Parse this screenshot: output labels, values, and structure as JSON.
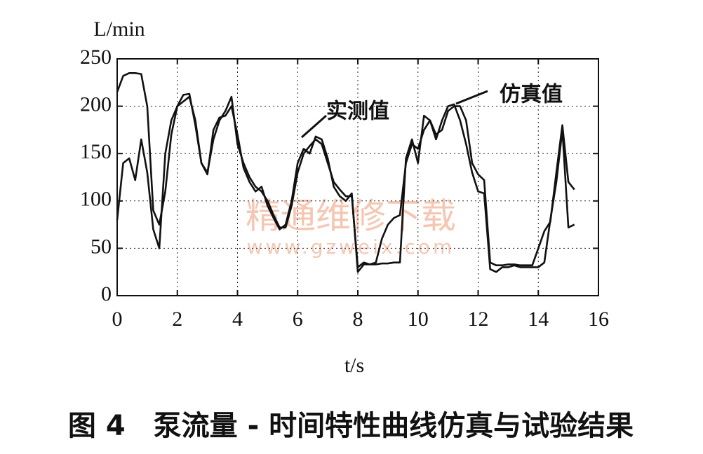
{
  "chart_data": {
    "type": "line",
    "x_label": "t/s",
    "y_label": "L/min",
    "caption": "图 4　泵流量 - 时间特性曲线仿真与试验结果",
    "watermark": [
      "精通维修下载",
      "www.gzweix.com"
    ],
    "xlim": [
      0,
      16
    ],
    "xticks": [
      0,
      2,
      4,
      6,
      8,
      10,
      12,
      14,
      16
    ],
    "ylim": [
      0,
      250
    ],
    "yticks": [
      0,
      50,
      100,
      150,
      200,
      250
    ],
    "grid": true,
    "x": [
      0,
      0.2,
      0.4,
      0.6,
      0.8,
      1.0,
      1.2,
      1.4,
      1.6,
      1.8,
      2.0,
      2.2,
      2.4,
      2.6,
      2.8,
      3.0,
      3.2,
      3.4,
      3.6,
      3.8,
      4.0,
      4.2,
      4.4,
      4.6,
      4.8,
      5.0,
      5.2,
      5.4,
      5.6,
      5.8,
      6.0,
      6.2,
      6.4,
      6.6,
      6.8,
      7.0,
      7.2,
      7.4,
      7.6,
      7.8,
      8.0,
      8.2,
      8.4,
      8.6,
      8.8,
      9.0,
      9.2,
      9.4,
      9.6,
      9.8,
      10.0,
      10.2,
      10.4,
      10.6,
      10.8,
      11.0,
      11.2,
      11.4,
      11.6,
      11.8,
      12.0,
      12.2,
      12.4,
      12.6,
      12.8,
      13.0,
      13.2,
      13.4,
      13.6,
      13.8,
      14.0,
      14.2,
      14.4,
      14.6,
      14.8,
      15.0,
      15.2
    ],
    "series": [
      {
        "name": "实测值",
        "color": "#111111",
        "values": [
          215,
          232,
          235,
          235,
          234,
          200,
          90,
          75,
          110,
          170,
          200,
          212,
          213,
          180,
          140,
          130,
          165,
          185,
          195,
          210,
          160,
          140,
          125,
          115,
          110,
          100,
          85,
          72,
          72,
          95,
          130,
          150,
          158,
          165,
          160,
          140,
          120,
          112,
          105,
          105,
          30,
          35,
          33,
          35,
          60,
          75,
          82,
          85,
          140,
          160,
          155,
          175,
          185,
          170,
          175,
          195,
          200,
          200,
          185,
          140,
          128,
          122,
          35,
          32,
          32,
          33,
          33,
          32,
          32,
          32,
          50,
          68,
          78,
          130,
          180,
          120,
          112
        ]
      },
      {
        "name": "仿真值",
        "color": "#111111",
        "values": [
          80,
          140,
          145,
          122,
          165,
          130,
          70,
          50,
          150,
          185,
          200,
          205,
          210,
          185,
          140,
          128,
          175,
          188,
          190,
          200,
          170,
          135,
          120,
          110,
          115,
          95,
          82,
          70,
          75,
          100,
          140,
          155,
          150,
          168,
          165,
          145,
          115,
          105,
          100,
          108,
          25,
          33,
          33,
          33,
          34,
          34,
          35,
          35,
          145,
          165,
          140,
          190,
          185,
          165,
          185,
          200,
          202,
          185,
          160,
          130,
          110,
          108,
          28,
          25,
          30,
          30,
          32,
          30,
          30,
          30,
          30,
          35,
          80,
          120,
          175,
          72,
          75
        ]
      }
    ]
  }
}
